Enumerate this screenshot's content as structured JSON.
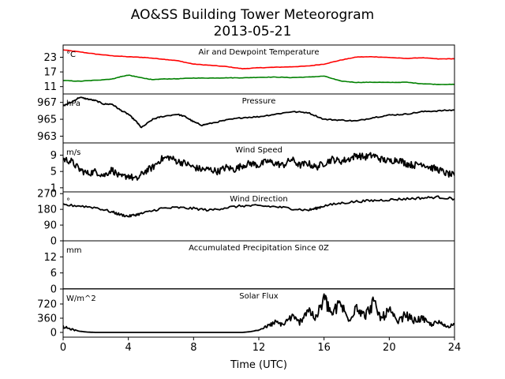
{
  "figure": {
    "title": "AO&SS Building Tower Meteorogram",
    "subtitle": "2013-05-21",
    "xlabel": "Time (UTC)"
  },
  "chart_data": [
    {
      "type": "line",
      "title": "Air and Dewpoint Temperature",
      "unit": "°C",
      "ylim": [
        8,
        28
      ],
      "yticks": [
        "11",
        "17",
        "23"
      ],
      "xlim": [
        0,
        24
      ],
      "series": [
        {
          "color": "#ff0000",
          "x": [
            0,
            1,
            2,
            3,
            4,
            5,
            6,
            7,
            8,
            9,
            10,
            11,
            12,
            13,
            14,
            15,
            16,
            17,
            18,
            19,
            20,
            21,
            22,
            23,
            24
          ],
          "values": [
            26,
            25.2,
            24.3,
            23.6,
            23.2,
            22.9,
            22.3,
            21.6,
            20.2,
            19.7,
            19.2,
            18.3,
            18.7,
            18.9,
            19.1,
            19.4,
            20.2,
            21.8,
            23.1,
            23.2,
            22.9,
            22.5,
            22.8,
            22.3,
            22.4
          ]
        },
        {
          "color": "#008000",
          "x": [
            0,
            1,
            2,
            3,
            3.5,
            4,
            4.5,
            5,
            5.5,
            6,
            7,
            8,
            9,
            10,
            11,
            12,
            13,
            14,
            15,
            16,
            17,
            18,
            19,
            20,
            21,
            22,
            23,
            24
          ],
          "values": [
            13.5,
            13.2,
            13.6,
            14.1,
            15.0,
            15.7,
            15.0,
            14.4,
            13.8,
            14.1,
            14.2,
            14.5,
            14.5,
            14.6,
            14.6,
            14.8,
            14.9,
            14.7,
            14.9,
            15.3,
            13.3,
            12.7,
            12.8,
            12.7,
            12.8,
            12.2,
            11.9,
            11.9
          ]
        }
      ]
    },
    {
      "type": "line",
      "title": "Pressure",
      "unit": "hPa",
      "ylim": [
        962.2,
        968
      ],
      "yticks": [
        "963",
        "965",
        "967"
      ],
      "xlim": [
        0,
        24
      ],
      "series": [
        {
          "color": "#000000",
          "x": [
            0,
            0.5,
            1,
            1.5,
            2,
            2.5,
            3,
            3.5,
            4,
            4.5,
            4.8,
            5.5,
            6,
            7,
            7.5,
            8,
            8.5,
            9,
            10,
            11,
            12,
            13,
            14,
            15,
            16,
            17,
            18,
            19,
            20,
            21,
            22,
            23,
            24
          ],
          "values": [
            966.6,
            967.0,
            967.6,
            967.4,
            967.2,
            966.8,
            966.8,
            966.1,
            965.6,
            964.7,
            964.0,
            965.0,
            965.3,
            965.6,
            965.3,
            964.7,
            964.3,
            964.5,
            964.9,
            965.2,
            965.3,
            965.6,
            965.9,
            965.8,
            965.0,
            964.9,
            964.8,
            965.2,
            965.5,
            965.6,
            965.9,
            966.0,
            966.1
          ]
        }
      ]
    },
    {
      "type": "line",
      "title": "Wind Speed",
      "unit": "m/s",
      "ylim": [
        0,
        12
      ],
      "yticks": [
        "1",
        "5",
        "9"
      ],
      "xlim": [
        0,
        24
      ],
      "series": [
        {
          "color": "#000000",
          "x": [
            0,
            0.5,
            1,
            1.5,
            2,
            2.5,
            3,
            3.5,
            4,
            4.5,
            5,
            5.5,
            6,
            6.5,
            7,
            7.5,
            8,
            8.5,
            9,
            9.5,
            10,
            10.5,
            11,
            11.5,
            12,
            12.5,
            13,
            13.5,
            14,
            14.5,
            15,
            15.5,
            16,
            16.5,
            17,
            17.5,
            18,
            18.5,
            19,
            19.5,
            20,
            20.5,
            21,
            21.5,
            22,
            22.5,
            23,
            23.5,
            24
          ],
          "values": [
            8,
            7.5,
            5.5,
            4.5,
            5,
            4,
            5.5,
            3.5,
            4,
            3,
            5,
            6,
            8,
            8.5,
            7.5,
            7,
            6,
            5.5,
            5.5,
            5,
            6,
            5.5,
            6.5,
            7,
            6.5,
            7.5,
            7,
            6.5,
            8,
            6.5,
            7,
            6,
            7,
            8,
            7.5,
            8,
            9,
            8.5,
            9,
            8,
            7.5,
            8,
            7,
            6.5,
            7,
            6,
            5.5,
            4.5,
            4
          ]
        }
      ]
    },
    {
      "type": "line",
      "title": "Wind Direction",
      "unit": "°",
      "ylim": [
        0,
        280
      ],
      "yticks": [
        "0",
        "90",
        "180",
        "270"
      ],
      "xlim": [
        0,
        24
      ],
      "series": [
        {
          "color": "#000000",
          "x": [
            0,
            1,
            2,
            3,
            3.5,
            4,
            4.5,
            5,
            6,
            7,
            8,
            9,
            10,
            11,
            12,
            13,
            14,
            15,
            15.5,
            16,
            17,
            18,
            19,
            20,
            21,
            22,
            23,
            24
          ],
          "values": [
            205,
            200,
            190,
            165,
            150,
            140,
            150,
            160,
            185,
            190,
            185,
            175,
            190,
            200,
            200,
            195,
            185,
            175,
            185,
            200,
            215,
            225,
            230,
            235,
            240,
            245,
            250,
            240
          ]
        }
      ]
    },
    {
      "type": "line",
      "title": "Accumulated Precipitation Since 0Z",
      "unit": "mm",
      "ylim": [
        0,
        18
      ],
      "yticks": [
        "0",
        "6",
        "12"
      ],
      "xlim": [
        0,
        24
      ],
      "series": [
        {
          "color": "#000000",
          "x": [
            0,
            24
          ],
          "values": [
            0,
            0
          ]
        }
      ]
    },
    {
      "type": "line",
      "title": "Solar Flux",
      "unit": "W/m^2",
      "ylim": [
        -120,
        1100
      ],
      "yticks": [
        "0",
        "360",
        "720"
      ],
      "xlim": [
        0,
        24
      ],
      "xticks": [
        "0",
        "4",
        "8",
        "12",
        "16",
        "20",
        "24"
      ],
      "series": [
        {
          "color": "#000000",
          "x": [
            0,
            0.5,
            1,
            1.5,
            2,
            3,
            4,
            5,
            6,
            7,
            8,
            9,
            10,
            10.5,
            11,
            11.5,
            12,
            12.5,
            13,
            13.5,
            14,
            14.5,
            15,
            15.5,
            16,
            16.5,
            17,
            17.5,
            18,
            18.5,
            19,
            19.5,
            20,
            20.5,
            21,
            21.5,
            22,
            22.5,
            23,
            23.5,
            24
          ],
          "values": [
            140,
            80,
            30,
            8,
            0,
            0,
            0,
            0,
            0,
            0,
            0,
            0,
            0,
            0,
            0,
            20,
            60,
            150,
            250,
            200,
            400,
            250,
            600,
            350,
            850,
            450,
            750,
            300,
            700,
            400,
            750,
            350,
            550,
            250,
            450,
            300,
            350,
            200,
            250,
            150,
            200
          ]
        }
      ]
    }
  ]
}
